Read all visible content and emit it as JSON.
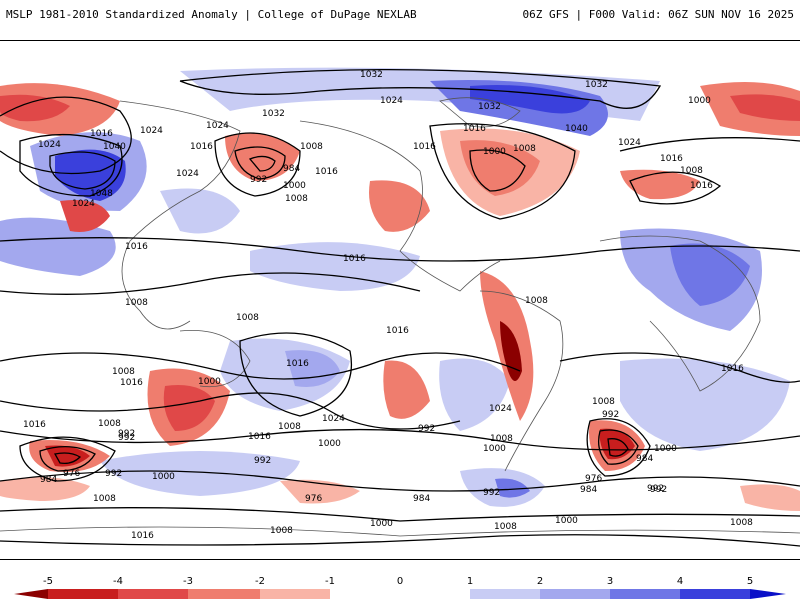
{
  "header": {
    "left_title": "MSLP 1981-2010 Standardized Anomaly | College of DuPage NEXLAB",
    "right_title": "06Z GFS | F000 Valid: 06Z SUN NOV 16 2025"
  },
  "colors": {
    "neg5": "#8b0000",
    "neg4": "#c81e1e",
    "neg3": "#e04848",
    "neg2": "#ef7d6e",
    "neg1": "#f9b4a6",
    "neutral": "#ffffff",
    "pos1": "#c8ccf4",
    "pos2": "#a3a8ee",
    "pos3": "#6f76e6",
    "pos4": "#3a40dc",
    "pos5": "#0a10c8",
    "contour": "#000000",
    "coast": "#555555"
  },
  "legend": {
    "ticks": [
      "-5",
      "-4",
      "-3",
      "-2",
      "-1",
      "0",
      "1",
      "2",
      "3",
      "4",
      "5"
    ]
  },
  "contour_labels": [
    "1032",
    "1032",
    "1032",
    "1024",
    "1024",
    "1032",
    "1024",
    "1016",
    "1040",
    "1000",
    "1016",
    "1024",
    "1040",
    "1016",
    "1048",
    "1024",
    "992",
    "984",
    "1000",
    "1008",
    "1008",
    "1016",
    "1024",
    "1016",
    "1008",
    "1016",
    "1000",
    "1008",
    "1024",
    "1016",
    "1016",
    "1000",
    "992",
    "1016",
    "1008",
    "1008",
    "1008",
    "1008",
    "1016",
    "1008",
    "1016",
    "1008",
    "1016",
    "1016",
    "1000",
    "992",
    "1016",
    "1008",
    "1024",
    "992",
    "1024",
    "1008",
    "1000",
    "1008",
    "992",
    "984",
    "976",
    "992",
    "1000",
    "984",
    "992",
    "976",
    "1008",
    "1000",
    "984",
    "992",
    "1000",
    "992",
    "976",
    "984",
    "1000",
    "1008",
    "1008",
    "992",
    "1016",
    "1016"
  ]
}
